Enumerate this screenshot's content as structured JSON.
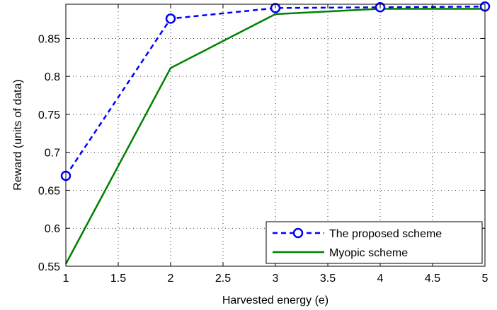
{
  "chart_data": {
    "type": "line",
    "xlabel": "Harvested energy (e)",
    "ylabel": "Reward (units of data)",
    "xlim": [
      1,
      5
    ],
    "ylim": [
      0.55,
      0.895
    ],
    "grid": true,
    "legend_position": "bottom-right",
    "x_ticks": [
      "1",
      "1.5",
      "2",
      "2.5",
      "3",
      "3.5",
      "4",
      "4.5",
      "5"
    ],
    "y_ticks": [
      "0.55",
      "0.6",
      "0.65",
      "0.7",
      "0.75",
      "0.8",
      "0.85"
    ],
    "x": [
      1,
      2,
      3,
      4,
      5
    ],
    "series": [
      {
        "name": "The proposed scheme",
        "values": [
          0.669,
          0.876,
          0.89,
          0.891,
          0.892
        ],
        "color": "#0000ff",
        "line_style": "dashed",
        "marker": "circle"
      },
      {
        "name": "Myopic scheme",
        "values": [
          0.553,
          0.811,
          0.882,
          0.889,
          0.889
        ],
        "color": "#008000",
        "line_style": "solid",
        "marker": "none"
      }
    ]
  }
}
